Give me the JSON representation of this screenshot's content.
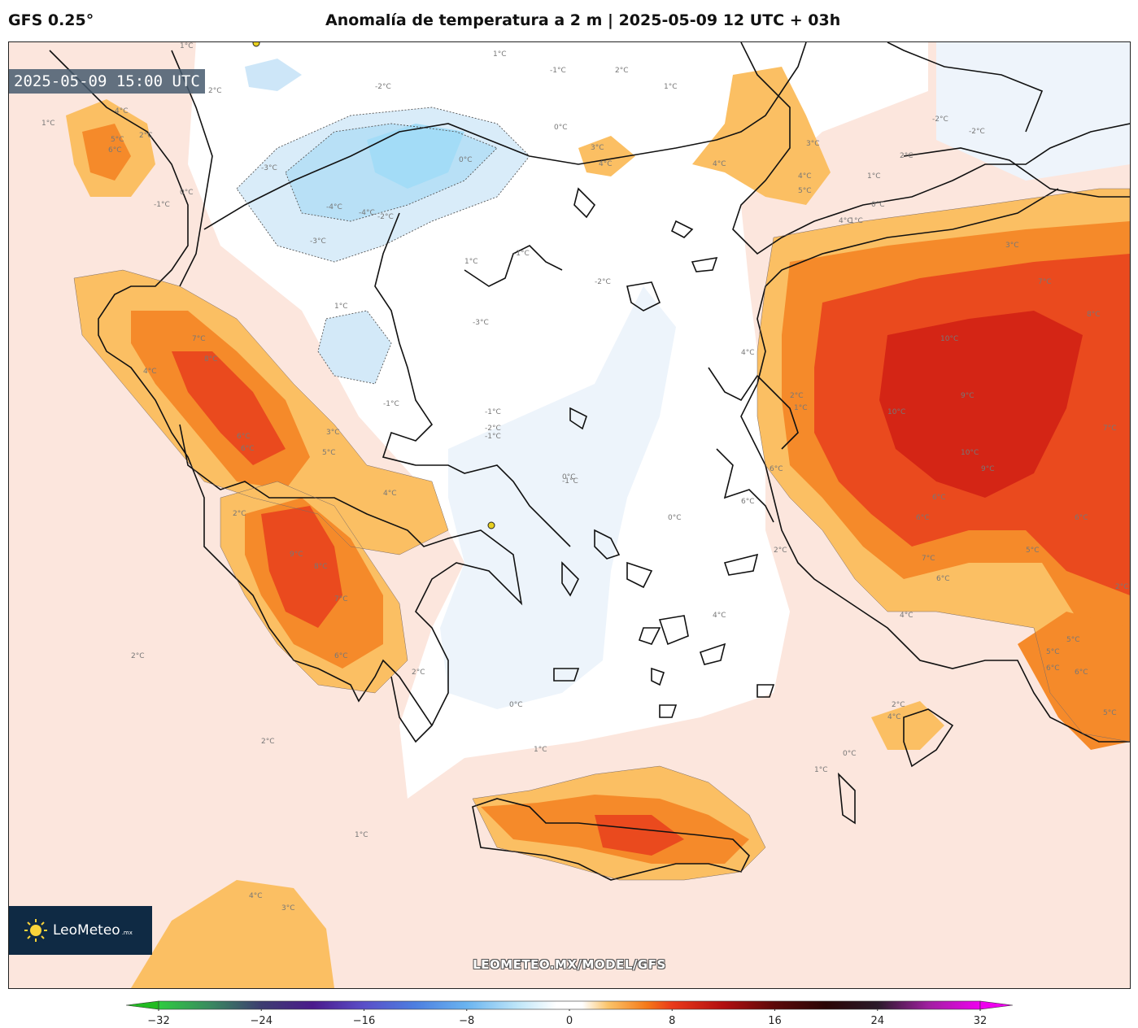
{
  "header": {
    "model": "GFS 0.25°",
    "title": "Anomalía de temperatura a 2 m | 2025-05-09 12 UTC + 03h"
  },
  "map": {
    "valid_time": "2025-05-09 15:00 UTC",
    "watermark": "LEOMETEO.MX/MODEL/GFS",
    "logo": {
      "name": "LeoMeteo",
      "suffix": ".mx"
    },
    "contour_labels": [
      "1°C",
      "2°C",
      "4°C",
      "5°C",
      "6°C",
      "2°C",
      "1°C",
      "0°C",
      "-1°C",
      "-2°C",
      "-3°C",
      "-4°C",
      "-4°C",
      "-3°C",
      "-2°C",
      "1°C",
      "-1°C",
      "2°C",
      "1°C",
      "0°C",
      "-1°C",
      "0°C",
      "1°C",
      "-1°C",
      "-2°C",
      "-3°C",
      "1°C",
      "-1°C",
      "-1°C",
      "-2°C",
      "7°C",
      "8°C",
      "4°C",
      "6°C",
      "6°C",
      "3°C",
      "5°C",
      "4°C",
      "9°C",
      "8°C",
      "7°C",
      "6°C",
      "2°C",
      "2°C",
      "0°C",
      "-1°C",
      "0°C",
      "1°C",
      "0°C",
      "2°C",
      "3°C",
      "4°C",
      "4°C",
      "3°C",
      "4°C",
      "5°C",
      "4°C",
      "2°C",
      "-1°C",
      "0°C",
      "1°C",
      "-2°C",
      "-2°C",
      "3°C",
      "7°C",
      "8°C",
      "6°C",
      "4°C",
      "10°C",
      "10°C",
      "9°C",
      "10°C",
      "9°C",
      "7°C",
      "6°C",
      "6°C",
      "7°C",
      "6°C",
      "4°C",
      "5°C",
      "6°C",
      "5°C",
      "6°C",
      "5°C",
      "2°C",
      "4°C",
      "0°C",
      "1°C",
      "6°C",
      "6°C",
      "5°C",
      "4°C",
      "2°C",
      "1°C",
      "2°C",
      "4°C",
      "3°C",
      "1°C",
      "2°C",
      "2°C"
    ]
  },
  "colorbar": {
    "min": -32,
    "max": 32,
    "ticks": [
      "−32",
      "−24",
      "−16",
      "−8",
      "0",
      "8",
      "16",
      "24",
      "32"
    ],
    "tick_values": [
      -32,
      -24,
      -16,
      -8,
      0,
      8,
      16,
      24,
      32
    ],
    "colors": {
      "below": "#22bb22",
      "above": "#ee00ee",
      "stops": [
        [
          -32,
          "#2ecc40"
        ],
        [
          -28,
          "#3a8a60"
        ],
        [
          -24,
          "#3d3d70"
        ],
        [
          -20,
          "#4b1a8c"
        ],
        [
          -16,
          "#5a4fc8"
        ],
        [
          -12,
          "#4d7fe0"
        ],
        [
          -8,
          "#6ab4f0"
        ],
        [
          -4,
          "#bfe6f8"
        ],
        [
          -1,
          "#ffffff"
        ],
        [
          1,
          "#ffffff"
        ],
        [
          3,
          "#fbc46a"
        ],
        [
          6,
          "#f57a1a"
        ],
        [
          8,
          "#ea3a1a"
        ],
        [
          12,
          "#b20f10"
        ],
        [
          16,
          "#5c0a0a"
        ],
        [
          20,
          "#2a0606"
        ],
        [
          24,
          "#2a1a2a"
        ],
        [
          28,
          "#a020a0"
        ],
        [
          32,
          "#f000f0"
        ]
      ]
    }
  }
}
